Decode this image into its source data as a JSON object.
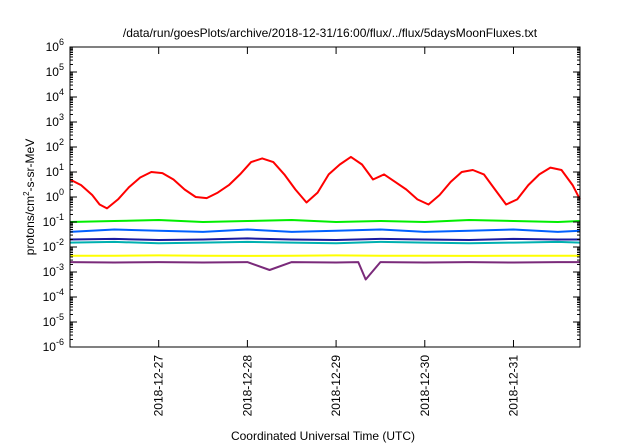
{
  "chart_data": {
    "type": "line",
    "title": "/data/run/goesPlots/archive/2018-12-31/16:00/flux/../flux/5daysMoonFluxes.txt",
    "xlabel": "Coordinated Universal Time (UTC)",
    "ylabel_base": "protons/cm",
    "ylabel_sup": "2",
    "ylabel_rest": "-s-sr-MeV",
    "yscale": "log",
    "ylim": [
      1e-06,
      1000000.0
    ],
    "ytick_exponents": [
      -6,
      -5,
      -4,
      -3,
      -2,
      -1,
      0,
      1,
      2,
      3,
      4,
      5,
      6
    ],
    "xlim": [
      "2018-12-26T00:00",
      "2018-12-31T18:00"
    ],
    "xticks": [
      "2018-12-27",
      "2018-12-28",
      "2018-12-29",
      "2018-12-30",
      "2018-12-31"
    ],
    "grid": false,
    "legend": "none",
    "series": [
      {
        "color": "#ff0000",
        "x": [
          "2018-12-26T00:00",
          "2018-12-26T03:00",
          "2018-12-26T06:00",
          "2018-12-26T08:00",
          "2018-12-26T10:00",
          "2018-12-26T13:00",
          "2018-12-26T16:00",
          "2018-12-26T19:00",
          "2018-12-26T22:00",
          "2018-12-27T01:00",
          "2018-12-27T04:00",
          "2018-12-27T07:00",
          "2018-12-27T10:00",
          "2018-12-27T13:00",
          "2018-12-27T16:00",
          "2018-12-27T19:00",
          "2018-12-27T22:00",
          "2018-12-28T01:00",
          "2018-12-28T04:00",
          "2018-12-28T07:00",
          "2018-12-28T10:00",
          "2018-12-28T13:00",
          "2018-12-28T16:00",
          "2018-12-28T19:00",
          "2018-12-28T22:00",
          "2018-12-29T01:00",
          "2018-12-29T04:00",
          "2018-12-29T07:00",
          "2018-12-29T10:00",
          "2018-12-29T13:00",
          "2018-12-29T16:00",
          "2018-12-29T19:00",
          "2018-12-29T22:00",
          "2018-12-30T01:00",
          "2018-12-30T04:00",
          "2018-12-30T07:00",
          "2018-12-30T10:00",
          "2018-12-30T13:00",
          "2018-12-30T16:00",
          "2018-12-30T19:00",
          "2018-12-30T22:00",
          "2018-12-31T01:00",
          "2018-12-31T04:00",
          "2018-12-31T07:00",
          "2018-12-31T10:00",
          "2018-12-31T13:00",
          "2018-12-31T16:00",
          "2018-12-31T18:00"
        ],
        "y": [
          5,
          3,
          1.2,
          0.5,
          0.35,
          0.8,
          2.5,
          6,
          10,
          9,
          5,
          2,
          1,
          0.9,
          1.5,
          3,
          8,
          25,
          35,
          25,
          8,
          2,
          0.6,
          1.5,
          8,
          20,
          40,
          20,
          5,
          8,
          4,
          2,
          0.8,
          0.5,
          1.2,
          4,
          10,
          12,
          8,
          2,
          0.5,
          0.8,
          3,
          8,
          15,
          12,
          3,
          0.8
        ]
      },
      {
        "color": "#00ee00",
        "x": [
          "2018-12-26T00:00",
          "2018-12-26T12:00",
          "2018-12-27T00:00",
          "2018-12-27T12:00",
          "2018-12-28T00:00",
          "2018-12-28T12:00",
          "2018-12-29T00:00",
          "2018-12-29T12:00",
          "2018-12-30T00:00",
          "2018-12-30T12:00",
          "2018-12-31T00:00",
          "2018-12-31T12:00",
          "2018-12-31T18:00"
        ],
        "y": [
          0.1,
          0.11,
          0.12,
          0.1,
          0.11,
          0.12,
          0.1,
          0.11,
          0.1,
          0.12,
          0.11,
          0.1,
          0.11
        ]
      },
      {
        "color": "#0060ff",
        "x": [
          "2018-12-26T00:00",
          "2018-12-26T12:00",
          "2018-12-27T00:00",
          "2018-12-27T12:00",
          "2018-12-28T00:00",
          "2018-12-28T12:00",
          "2018-12-29T00:00",
          "2018-12-29T12:00",
          "2018-12-30T00:00",
          "2018-12-30T12:00",
          "2018-12-31T00:00",
          "2018-12-31T12:00",
          "2018-12-31T18:00"
        ],
        "y": [
          0.04,
          0.05,
          0.045,
          0.04,
          0.05,
          0.04,
          0.045,
          0.05,
          0.04,
          0.045,
          0.05,
          0.04,
          0.045
        ]
      },
      {
        "color": "#00b0b0",
        "x": [
          "2018-12-26T00:00",
          "2018-12-26T12:00",
          "2018-12-27T00:00",
          "2018-12-27T12:00",
          "2018-12-28T00:00",
          "2018-12-28T12:00",
          "2018-12-29T00:00",
          "2018-12-29T12:00",
          "2018-12-30T00:00",
          "2018-12-30T12:00",
          "2018-12-31T00:00",
          "2018-12-31T12:00",
          "2018-12-31T18:00"
        ],
        "y": [
          0.015,
          0.016,
          0.014,
          0.015,
          0.016,
          0.015,
          0.014,
          0.016,
          0.015,
          0.014,
          0.015,
          0.016,
          0.015
        ]
      },
      {
        "color": "#1a1aa0",
        "x": [
          "2018-12-26T00:00",
          "2018-12-26T12:00",
          "2018-12-27T00:00",
          "2018-12-27T12:00",
          "2018-12-28T00:00",
          "2018-12-28T12:00",
          "2018-12-29T00:00",
          "2018-12-29T12:00",
          "2018-12-30T00:00",
          "2018-12-30T12:00",
          "2018-12-31T00:00",
          "2018-12-31T12:00",
          "2018-12-31T18:00"
        ],
        "y": [
          0.02,
          0.021,
          0.019,
          0.02,
          0.022,
          0.02,
          0.019,
          0.021,
          0.02,
          0.019,
          0.021,
          0.02,
          0.02
        ]
      },
      {
        "color": "#ffff00",
        "x": [
          "2018-12-26T00:00",
          "2018-12-26T12:00",
          "2018-12-27T00:00",
          "2018-12-27T12:00",
          "2018-12-28T00:00",
          "2018-12-28T12:00",
          "2018-12-29T00:00",
          "2018-12-29T12:00",
          "2018-12-30T00:00",
          "2018-12-30T12:00",
          "2018-12-31T00:00",
          "2018-12-31T12:00",
          "2018-12-31T18:00"
        ],
        "y": [
          0.0045,
          0.0045,
          0.0046,
          0.0045,
          0.0044,
          0.0045,
          0.0046,
          0.0045,
          0.0045,
          0.0044,
          0.0045,
          0.0045,
          0.0045
        ]
      },
      {
        "color": "#7a2a7a",
        "x": [
          "2018-12-26T00:00",
          "2018-12-26T12:00",
          "2018-12-27T00:00",
          "2018-12-27T12:00",
          "2018-12-28T00:00",
          "2018-12-28T06:00",
          "2018-12-28T12:00",
          "2018-12-29T00:00",
          "2018-12-29T06:00",
          "2018-12-29T08:00",
          "2018-12-29T12:00",
          "2018-12-30T00:00",
          "2018-12-30T12:00",
          "2018-12-31T00:00",
          "2018-12-31T12:00",
          "2018-12-31T18:00"
        ],
        "y": [
          0.0025,
          0.0024,
          0.0025,
          0.0024,
          0.0025,
          0.0012,
          0.0025,
          0.0024,
          0.0025,
          0.0005,
          0.0025,
          0.0024,
          0.0025,
          0.0024,
          0.0025,
          0.0025
        ]
      }
    ]
  }
}
